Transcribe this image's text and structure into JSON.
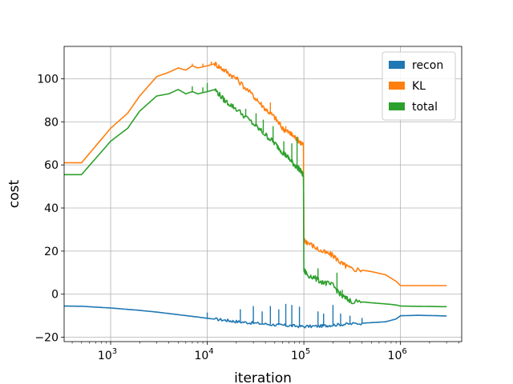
{
  "chart_data": {
    "type": "line",
    "title": "",
    "xlabel": "iteration",
    "ylabel": "cost",
    "xscale": "log",
    "xlim": [
      330,
      4300000
    ],
    "ylim": [
      -22,
      115
    ],
    "grid": true,
    "legend_position": "top-right",
    "y_ticks": [
      -20,
      0,
      20,
      40,
      60,
      80,
      100
    ],
    "y_tick_labels": [
      "−20",
      "0",
      "20",
      "40",
      "60",
      "80",
      "100"
    ],
    "x_ticks": [
      {
        "value": 1000,
        "base": "10",
        "exp": "3"
      },
      {
        "value": 10000,
        "base": "10",
        "exp": "4"
      },
      {
        "value": 100000,
        "base": "10",
        "exp": "5"
      },
      {
        "value": 1000000,
        "base": "10",
        "exp": "6"
      }
    ],
    "series": [
      {
        "name": "recon",
        "color": "#1f77b4",
        "points": [
          [
            330,
            -5.5
          ],
          [
            500,
            -5.6
          ],
          [
            1000,
            -6.4
          ],
          [
            2000,
            -7.5
          ],
          [
            3000,
            -8.3
          ],
          [
            5000,
            -9.5
          ],
          [
            8000,
            -10.6
          ],
          [
            10000,
            -11.2
          ],
          [
            15000,
            -12
          ],
          [
            20000,
            -12.7
          ],
          [
            30000,
            -13.4
          ],
          [
            50000,
            -14.2
          ],
          [
            70000,
            -14.6
          ],
          [
            100000,
            -15
          ],
          [
            150000,
            -14.8
          ],
          [
            200000,
            -14.3
          ],
          [
            300000,
            -13.8
          ],
          [
            500000,
            -13.2
          ],
          [
            700000,
            -12.8
          ],
          [
            900000,
            -11.5
          ],
          [
            1000000,
            -10
          ],
          [
            1500000,
            -9.8
          ],
          [
            2000000,
            -9.9
          ],
          [
            3000000,
            -10.1
          ]
        ],
        "spikes": [
          [
            10000,
            -8.5
          ],
          [
            22000,
            -7.0
          ],
          [
            30000,
            -5.5
          ],
          [
            37000,
            -8
          ],
          [
            45000,
            -5.5
          ],
          [
            55000,
            -7
          ],
          [
            65000,
            -4.5
          ],
          [
            75000,
            -5
          ],
          [
            90000,
            -5.8
          ],
          [
            140000,
            -8
          ],
          [
            160000,
            -9
          ],
          [
            200000,
            -5
          ],
          [
            240000,
            -9
          ],
          [
            300000,
            -10
          ],
          [
            400000,
            -11
          ]
        ]
      },
      {
        "name": "KL",
        "color": "#ff7f0e",
        "points": [
          [
            330,
            61
          ],
          [
            500,
            61
          ],
          [
            1000,
            77
          ],
          [
            1500,
            84
          ],
          [
            2000,
            92
          ],
          [
            3000,
            101
          ],
          [
            4000,
            103
          ],
          [
            5000,
            105
          ],
          [
            6000,
            104
          ],
          [
            7000,
            106
          ],
          [
            8000,
            105
          ],
          [
            10000,
            106
          ],
          [
            12000,
            107
          ],
          [
            15000,
            104
          ],
          [
            20000,
            100
          ],
          [
            30000,
            92
          ],
          [
            40000,
            86
          ],
          [
            50000,
            82
          ],
          [
            60000,
            77
          ],
          [
            70000,
            75
          ],
          [
            80000,
            73
          ],
          [
            90000,
            71
          ],
          [
            99000,
            69
          ],
          [
            100000,
            25
          ],
          [
            110000,
            24
          ],
          [
            150000,
            20
          ],
          [
            200000,
            18
          ],
          [
            250000,
            14
          ],
          [
            300000,
            12
          ],
          [
            500000,
            10.5
          ],
          [
            700000,
            9
          ],
          [
            900000,
            6
          ],
          [
            1000000,
            4
          ],
          [
            2000000,
            4
          ],
          [
            3000000,
            4
          ]
        ],
        "spikes": [
          [
            7000,
            107
          ],
          [
            9000,
            107
          ],
          [
            11000,
            108
          ],
          [
            17000,
            102
          ],
          [
            20000,
            101
          ],
          [
            33000,
            91
          ],
          [
            45000,
            89
          ],
          [
            65000,
            78
          ]
        ]
      },
      {
        "name": "total",
        "color": "#2ca02c",
        "points": [
          [
            330,
            55.5
          ],
          [
            500,
            55.5
          ],
          [
            1000,
            71
          ],
          [
            1500,
            77
          ],
          [
            2000,
            85
          ],
          [
            3000,
            92
          ],
          [
            4000,
            93
          ],
          [
            5000,
            95
          ],
          [
            6000,
            93
          ],
          [
            7000,
            94
          ],
          [
            8000,
            93
          ],
          [
            10000,
            94
          ],
          [
            12000,
            95
          ],
          [
            15000,
            90
          ],
          [
            20000,
            86
          ],
          [
            30000,
            79
          ],
          [
            40000,
            74
          ],
          [
            50000,
            70
          ],
          [
            60000,
            66
          ],
          [
            70000,
            63
          ],
          [
            80000,
            60
          ],
          [
            90000,
            58
          ],
          [
            99000,
            55
          ],
          [
            100000,
            11
          ],
          [
            110000,
            9
          ],
          [
            150000,
            6
          ],
          [
            200000,
            4
          ],
          [
            250000,
            -1
          ],
          [
            300000,
            -3
          ],
          [
            500000,
            -4
          ],
          [
            700000,
            -4.5
          ],
          [
            900000,
            -5
          ],
          [
            1000000,
            -5.5
          ],
          [
            2000000,
            -5.7
          ],
          [
            3000000,
            -5.8
          ]
        ],
        "spikes": [
          [
            7000,
            96.5
          ],
          [
            9000,
            96
          ],
          [
            10000,
            98
          ],
          [
            25000,
            86
          ],
          [
            32000,
            84
          ],
          [
            38000,
            81
          ],
          [
            48000,
            78
          ],
          [
            62000,
            71
          ],
          [
            75000,
            70
          ],
          [
            85000,
            73
          ],
          [
            140000,
            12
          ],
          [
            220000,
            10
          ],
          [
            250000,
            2
          ]
        ]
      }
    ]
  }
}
